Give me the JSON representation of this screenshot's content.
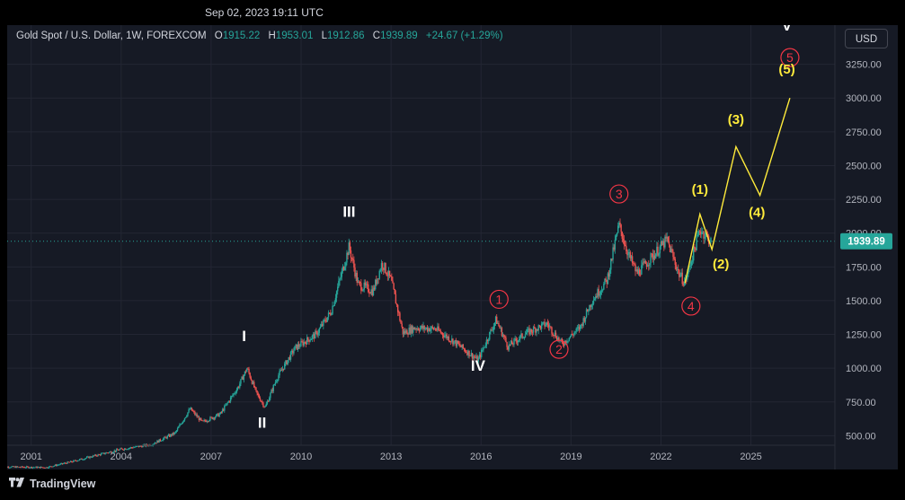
{
  "header": {
    "timestamp": "Sep 02, 2023 19:11 UTC"
  },
  "legend": {
    "symbol": "Gold Spot / U.S. Dollar, 1W, FOREXCOM",
    "open_label": "O",
    "open": "1915.22",
    "high_label": "H",
    "high": "1953.01",
    "low_label": "L",
    "low": "1912.86",
    "close_label": "C",
    "close": "1939.89",
    "change": "+24.67 (+1.29%)"
  },
  "currency_button": "USD",
  "footer": {
    "brand": "TradingView"
  },
  "chart_data": {
    "type": "candlestick",
    "x_ticks": [
      "2001",
      "2004",
      "2007",
      "2010",
      "2013",
      "2016",
      "2019",
      "2022",
      "2025"
    ],
    "y_ticks": [
      "500.00",
      "750.00",
      "1000.00",
      "1250.00",
      "1500.00",
      "1750.00",
      "2000.00",
      "2250.00",
      "2500.00",
      "2750.00",
      "3000.00",
      "3250.00"
    ],
    "ylim": [
      250,
      3540
    ],
    "xlim": [
      2000.2,
      2027.8
    ],
    "last_price": "1939.89",
    "price_path": [
      [
        2000.0,
        270
      ],
      [
        2001.5,
        265
      ],
      [
        2002.3,
        305
      ],
      [
        2003.0,
        345
      ],
      [
        2004.0,
        400
      ],
      [
        2005.0,
        435
      ],
      [
        2005.8,
        520
      ],
      [
        2006.3,
        700
      ],
      [
        2006.7,
        600
      ],
      [
        2007.3,
        660
      ],
      [
        2007.9,
        860
      ],
      [
        2008.2,
        1000
      ],
      [
        2008.5,
        820
      ],
      [
        2008.8,
        710
      ],
      [
        2009.2,
        930
      ],
      [
        2009.8,
        1150
      ],
      [
        2010.5,
        1250
      ],
      [
        2011.0,
        1420
      ],
      [
        2011.6,
        1900
      ],
      [
        2011.9,
        1620
      ],
      [
        2012.4,
        1570
      ],
      [
        2012.7,
        1780
      ],
      [
        2013.0,
        1650
      ],
      [
        2013.4,
        1260
      ],
      [
        2013.8,
        1300
      ],
      [
        2014.5,
        1290
      ],
      [
        2015.2,
        1180
      ],
      [
        2015.9,
        1060
      ],
      [
        2016.5,
        1360
      ],
      [
        2016.9,
        1160
      ],
      [
        2017.5,
        1260
      ],
      [
        2018.2,
        1330
      ],
      [
        2018.7,
        1180
      ],
      [
        2019.3,
        1300
      ],
      [
        2019.7,
        1500
      ],
      [
        2020.2,
        1650
      ],
      [
        2020.6,
        2060
      ],
      [
        2020.9,
        1850
      ],
      [
        2021.2,
        1700
      ],
      [
        2021.6,
        1800
      ],
      [
        2022.2,
        1950
      ],
      [
        2022.6,
        1700
      ],
      [
        2022.8,
        1630
      ],
      [
        2023.3,
        2030
      ],
      [
        2023.67,
        1940
      ]
    ],
    "projection": [
      [
        2022.8,
        1630
      ],
      [
        2023.3,
        2140
      ],
      [
        2023.7,
        1880
      ],
      [
        2024.5,
        2640
      ],
      [
        2025.3,
        2280
      ],
      [
        2026.3,
        3000
      ]
    ],
    "wave_labels": {
      "primary": [
        {
          "text": "I",
          "x": 2008.1,
          "y": 1200
        },
        {
          "text": "II",
          "x": 2008.7,
          "y": 560
        },
        {
          "text": "III",
          "x": 2011.6,
          "y": 2120
        },
        {
          "text": "IV",
          "x": 2015.9,
          "y": 980
        },
        {
          "text": "V",
          "x": 2026.2,
          "y": 3500
        }
      ],
      "intermediate_circled": [
        {
          "text": "1",
          "x": 2016.6,
          "y": 1510
        },
        {
          "text": "2",
          "x": 2018.6,
          "y": 1140
        },
        {
          "text": "3",
          "x": 2020.6,
          "y": 2290
        },
        {
          "text": "4",
          "x": 2023.0,
          "y": 1460
        },
        {
          "text": "5",
          "x": 2026.3,
          "y": 3300
        }
      ],
      "minor_projected": [
        {
          "text": "(1)",
          "x": 2023.3,
          "y": 2290
        },
        {
          "text": "(2)",
          "x": 2024.0,
          "y": 1740
        },
        {
          "text": "(3)",
          "x": 2024.5,
          "y": 2810
        },
        {
          "text": "(4)",
          "x": 2025.2,
          "y": 2120
        },
        {
          "text": "(5)",
          "x": 2026.2,
          "y": 3180
        }
      ]
    },
    "colors": {
      "up": "#26a69a",
      "down": "#ef5350",
      "primary": "#ffffff",
      "circled": "#f23645",
      "projection": "#ffeb3b"
    }
  }
}
